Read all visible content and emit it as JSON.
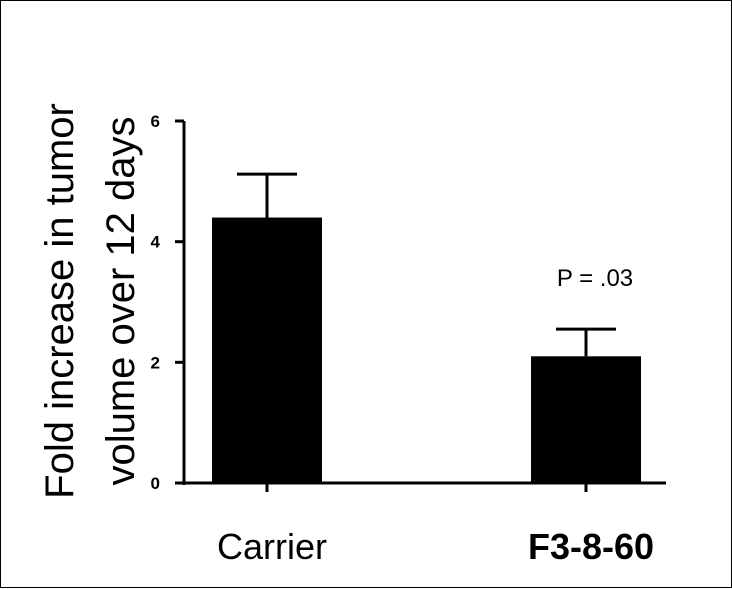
{
  "chart_data": {
    "type": "bar",
    "ylabel_lines": [
      "Fold increase in tumor",
      "volume over 12 days"
    ],
    "categories": [
      "Carrier",
      "F3-8-60"
    ],
    "values": [
      4.4,
      2.1
    ],
    "error_upper": [
      0.72,
      0.45
    ],
    "yticks": [
      "0",
      "2",
      "4",
      "6"
    ],
    "ylim": [
      0,
      6
    ],
    "annotation": "P = .03",
    "bar_color": "#000000",
    "grid": false,
    "legend": "none"
  }
}
